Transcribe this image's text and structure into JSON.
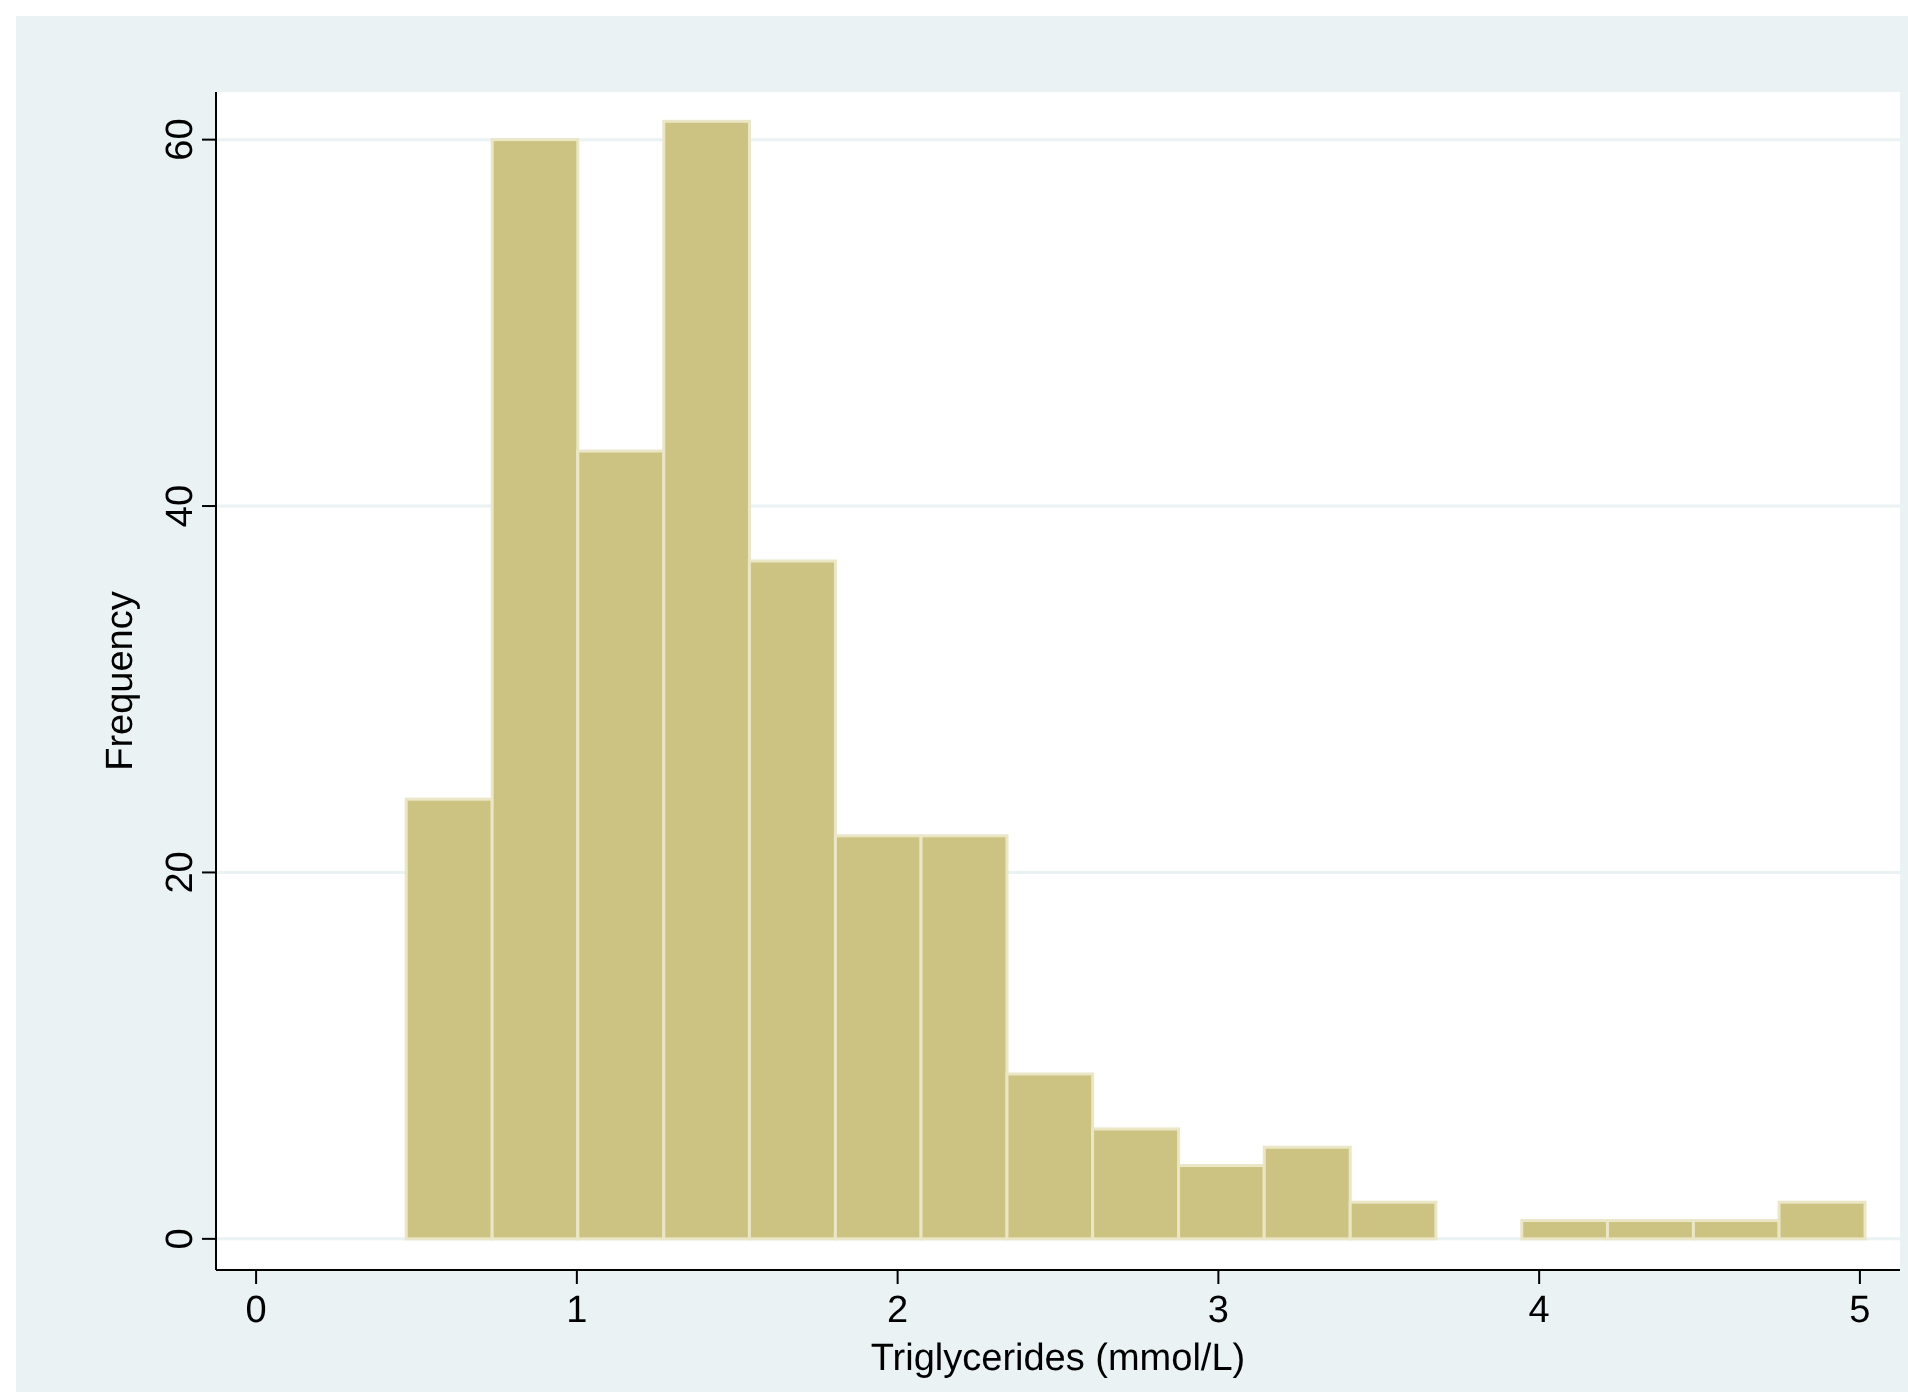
{
  "chart_data": {
    "type": "histogram",
    "xlabel": "Triglycerides (mmol/L)",
    "ylabel": "Frequency",
    "bins": [
      0.468,
      0.736,
      1.003,
      1.271,
      1.538,
      1.806,
      2.073,
      2.341,
      2.608,
      2.876,
      3.143,
      3.411,
      3.678,
      3.946,
      4.213,
      4.481,
      4.748,
      5.016
    ],
    "values": [
      24,
      60,
      43,
      61,
      37,
      22,
      22,
      9,
      6,
      4,
      5,
      2,
      0,
      1,
      1,
      1,
      2
    ],
    "color": "#ccc281",
    "xlim": [
      -0.125,
      5.125
    ],
    "ylim": [
      -1.7,
      62.6
    ],
    "xticks": [
      0,
      1,
      2,
      3,
      4,
      5
    ],
    "yticks": [
      0,
      20,
      40,
      60
    ],
    "grid": "y"
  }
}
